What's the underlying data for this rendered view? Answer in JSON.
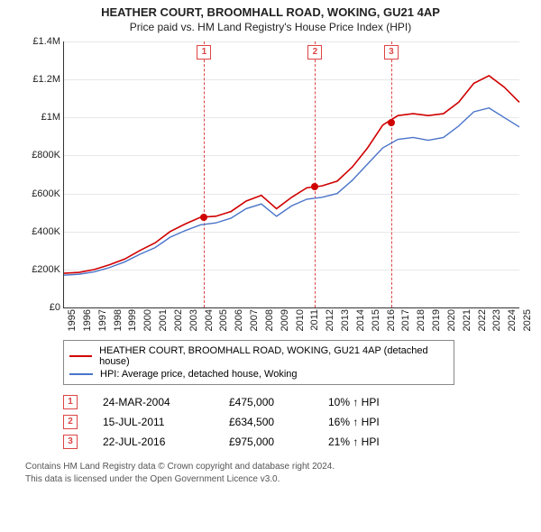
{
  "title": {
    "line1": "HEATHER COURT, BROOMHALL ROAD, WOKING, GU21 4AP",
    "line2": "Price paid vs. HM Land Registry's House Price Index (HPI)"
  },
  "chart": {
    "type": "line",
    "background_color": "#ffffff",
    "grid_color": "#e8e8e8",
    "axis_color": "#333333",
    "font_size_ticks": 11,
    "x": {
      "min": 1995,
      "max": 2025,
      "ticks": [
        1995,
        1996,
        1997,
        1998,
        1999,
        2000,
        2001,
        2002,
        2003,
        2004,
        2005,
        2006,
        2007,
        2008,
        2009,
        2010,
        2011,
        2012,
        2013,
        2014,
        2015,
        2016,
        2017,
        2018,
        2019,
        2020,
        2021,
        2022,
        2023,
        2024,
        2025
      ]
    },
    "y": {
      "min": 0,
      "max": 1400000,
      "ticks": [
        0,
        200000,
        400000,
        600000,
        800000,
        1000000,
        1200000,
        1400000
      ],
      "tick_labels": [
        "£0",
        "£200K",
        "£400K",
        "£600K",
        "£800K",
        "£1M",
        "£1.2M",
        "£1.4M"
      ]
    },
    "series": [
      {
        "id": "property",
        "label": "HEATHER COURT, BROOMHALL ROAD, WOKING, GU21 4AP (detached house)",
        "color": "#d00000",
        "line_width": 1.6,
        "data": [
          [
            1995,
            180000
          ],
          [
            1996,
            185000
          ],
          [
            1997,
            200000
          ],
          [
            1998,
            225000
          ],
          [
            1999,
            255000
          ],
          [
            2000,
            300000
          ],
          [
            2001,
            340000
          ],
          [
            2002,
            400000
          ],
          [
            2003,
            440000
          ],
          [
            2004,
            475000
          ],
          [
            2005,
            480000
          ],
          [
            2006,
            505000
          ],
          [
            2007,
            560000
          ],
          [
            2008,
            590000
          ],
          [
            2009,
            520000
          ],
          [
            2010,
            580000
          ],
          [
            2011,
            630000
          ],
          [
            2012,
            640000
          ],
          [
            2013,
            665000
          ],
          [
            2014,
            740000
          ],
          [
            2015,
            840000
          ],
          [
            2016,
            960000
          ],
          [
            2017,
            1010000
          ],
          [
            2018,
            1020000
          ],
          [
            2019,
            1010000
          ],
          [
            2020,
            1020000
          ],
          [
            2021,
            1080000
          ],
          [
            2022,
            1180000
          ],
          [
            2023,
            1220000
          ],
          [
            2024,
            1160000
          ],
          [
            2025,
            1080000
          ]
        ]
      },
      {
        "id": "hpi",
        "label": "HPI: Average price, detached house, Woking",
        "color": "#4a74c9",
        "line_width": 1.4,
        "data": [
          [
            1995,
            170000
          ],
          [
            1996,
            175000
          ],
          [
            1997,
            188000
          ],
          [
            1998,
            210000
          ],
          [
            1999,
            240000
          ],
          [
            2000,
            280000
          ],
          [
            2001,
            315000
          ],
          [
            2002,
            370000
          ],
          [
            2003,
            405000
          ],
          [
            2004,
            435000
          ],
          [
            2005,
            445000
          ],
          [
            2006,
            470000
          ],
          [
            2007,
            520000
          ],
          [
            2008,
            545000
          ],
          [
            2009,
            480000
          ],
          [
            2010,
            535000
          ],
          [
            2011,
            570000
          ],
          [
            2012,
            580000
          ],
          [
            2013,
            600000
          ],
          [
            2014,
            670000
          ],
          [
            2015,
            755000
          ],
          [
            2016,
            840000
          ],
          [
            2017,
            885000
          ],
          [
            2018,
            895000
          ],
          [
            2019,
            880000
          ],
          [
            2020,
            895000
          ],
          [
            2021,
            955000
          ],
          [
            2022,
            1030000
          ],
          [
            2023,
            1050000
          ],
          [
            2024,
            1000000
          ],
          [
            2025,
            950000
          ]
        ]
      }
    ],
    "markers": [
      {
        "n": "1",
        "x": 2004.23,
        "y": 475000
      },
      {
        "n": "2",
        "x": 2011.54,
        "y": 634500
      },
      {
        "n": "3",
        "x": 2016.56,
        "y": 975000
      }
    ],
    "marker_style": {
      "line_color": "#d44",
      "box_border": "#d44",
      "box_text_color": "#d44",
      "dot_color": "#d00000"
    }
  },
  "legend": {
    "items": [
      {
        "color": "#d00000",
        "label": "HEATHER COURT, BROOMHALL ROAD, WOKING, GU21 4AP (detached house)"
      },
      {
        "color": "#4a74c9",
        "label": "HPI: Average price, detached house, Woking"
      }
    ]
  },
  "sales": [
    {
      "n": "1",
      "date": "24-MAR-2004",
      "price": "£475,000",
      "pct": "10% ↑ HPI"
    },
    {
      "n": "2",
      "date": "15-JUL-2011",
      "price": "£634,500",
      "pct": "16% ↑ HPI"
    },
    {
      "n": "3",
      "date": "22-JUL-2016",
      "price": "£975,000",
      "pct": "21% ↑ HPI"
    }
  ],
  "footer": {
    "l1": "Contains HM Land Registry data © Crown copyright and database right 2024.",
    "l2": "This data is licensed under the Open Government Licence v3.0."
  }
}
